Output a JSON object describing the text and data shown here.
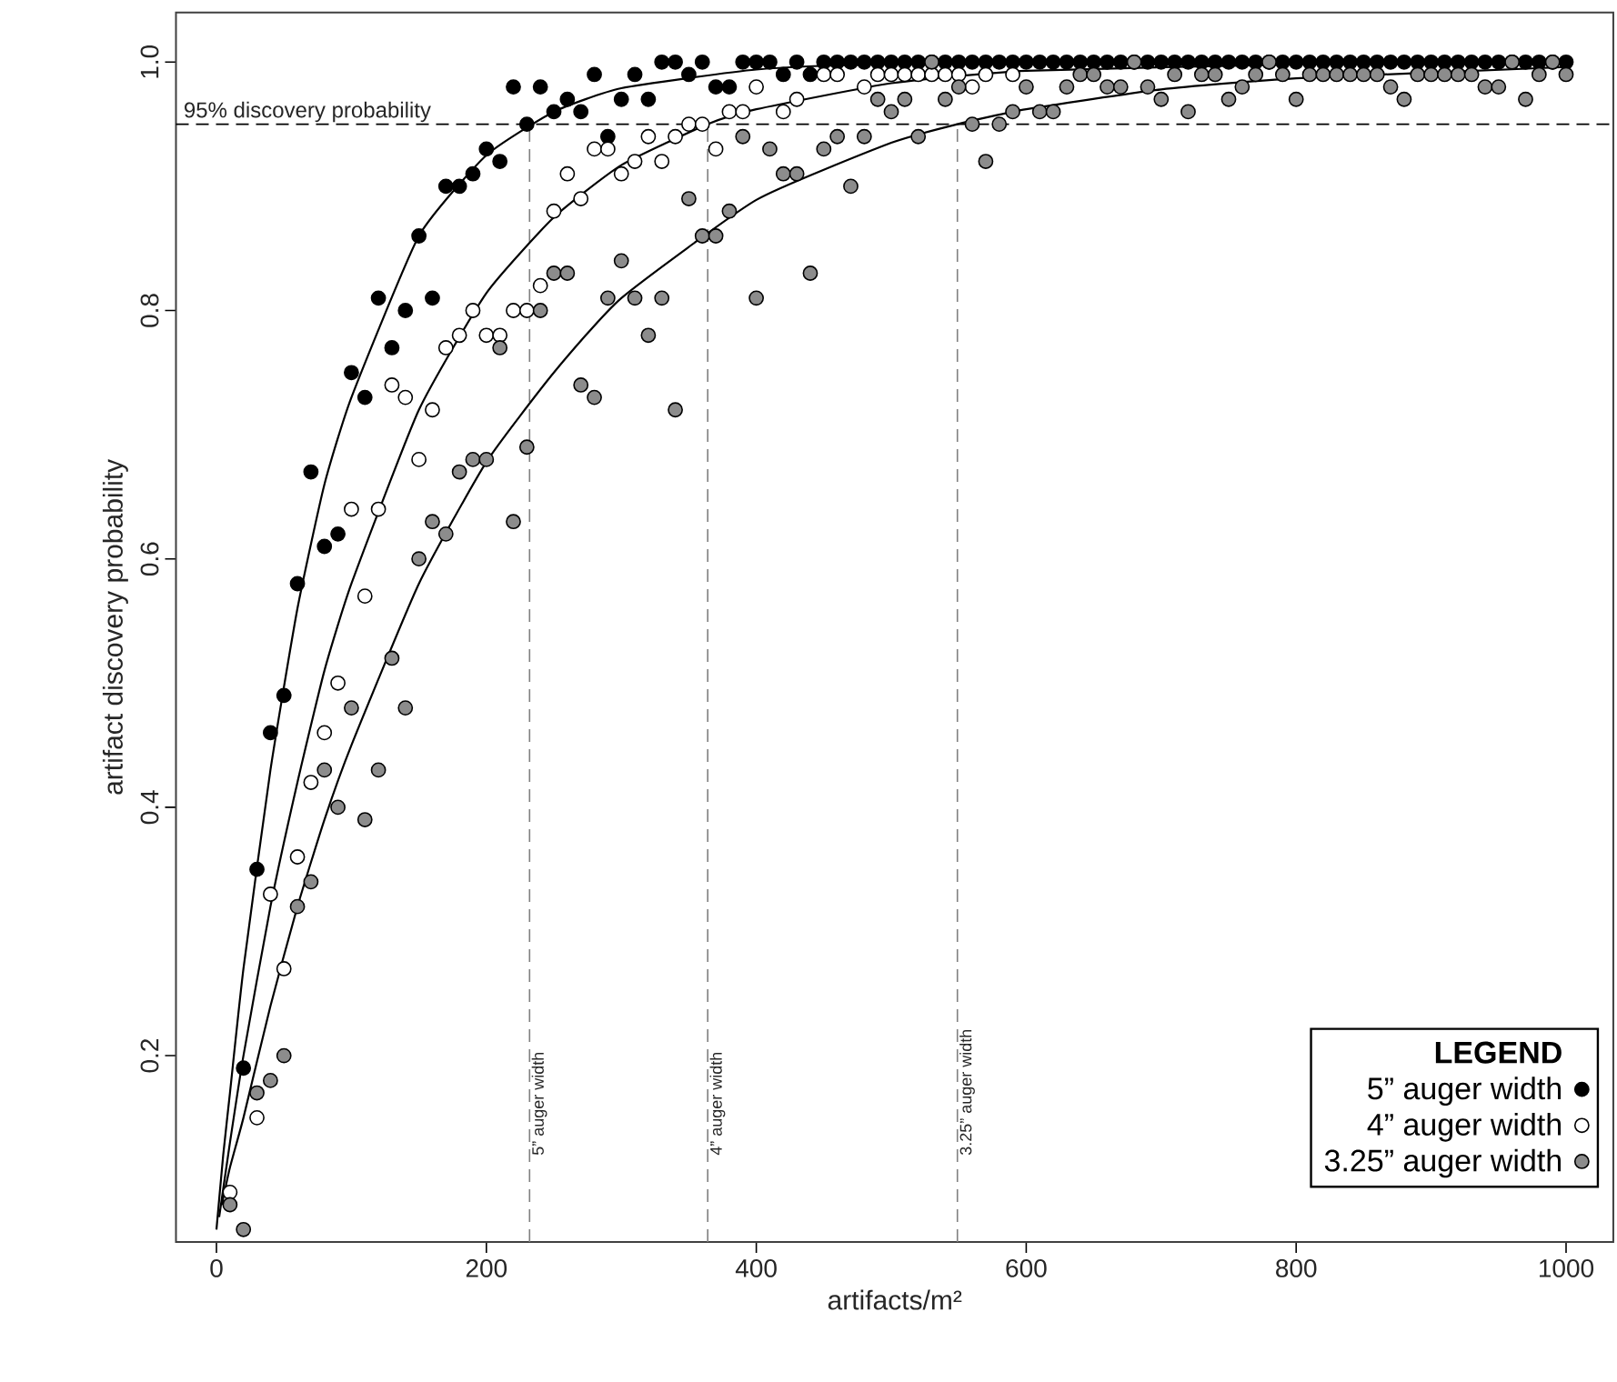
{
  "chart_data": {
    "type": "scatter",
    "xlabel": "artifacts/m²",
    "ylabel": "artifact discovery probability",
    "xlim": [
      -30,
      1035
    ],
    "ylim": [
      0.05,
      1.04
    ],
    "xticks": [
      0,
      200,
      400,
      600,
      800,
      1000
    ],
    "yticks": [
      0.2,
      0.4,
      0.6,
      0.8,
      {
        "value": 1,
        "label": "1.0"
      }
    ],
    "legend": "bottom right",
    "legend_title": "LEGEND",
    "series": [
      {
        "name": "5” auger width",
        "marker": "circle",
        "color": "#000000",
        "x": [
          20,
          30,
          40,
          50,
          60,
          70,
          80,
          90,
          100,
          110,
          120,
          130,
          140,
          150,
          160,
          170,
          180,
          190,
          200,
          210,
          220,
          230,
          240,
          250,
          260,
          270,
          280,
          290,
          300,
          310,
          320,
          330,
          340,
          350,
          360,
          370,
          380,
          390,
          400,
          410,
          420,
          430,
          440,
          450,
          460,
          470,
          480,
          490,
          500,
          510,
          520,
          530,
          540,
          550,
          560,
          570,
          580,
          590,
          600,
          610,
          620,
          630,
          640,
          650,
          660,
          670,
          680,
          690,
          700,
          710,
          720,
          730,
          740,
          750,
          760,
          770,
          780,
          790,
          800,
          810,
          820,
          830,
          840,
          850,
          860,
          870,
          880,
          890,
          900,
          910,
          920,
          930,
          940,
          950,
          960,
          970,
          980,
          990,
          1000
        ],
        "values": [
          0.19,
          0.35,
          0.46,
          0.49,
          0.58,
          0.67,
          0.61,
          0.62,
          0.75,
          0.73,
          0.81,
          0.77,
          0.8,
          0.86,
          0.81,
          0.9,
          0.9,
          0.91,
          0.93,
          0.92,
          0.98,
          0.95,
          0.98,
          0.96,
          0.97,
          0.96,
          0.99,
          0.94,
          0.97,
          0.99,
          0.97,
          1,
          1,
          0.99,
          1,
          0.98,
          0.98,
          1,
          1,
          1,
          0.99,
          1,
          0.99,
          1,
          1,
          1,
          1,
          1,
          1,
          1,
          1,
          1,
          1,
          1,
          1,
          1,
          1,
          1,
          1,
          1,
          1,
          1,
          1,
          1,
          1,
          1,
          1,
          1,
          1,
          1,
          1,
          1,
          1,
          1,
          1,
          1,
          1,
          1,
          1,
          1,
          1,
          1,
          1,
          1,
          1,
          1,
          1,
          1,
          1,
          1,
          1,
          1,
          1,
          1,
          1,
          1,
          1,
          1,
          1
        ]
      },
      {
        "name": "4” auger width",
        "marker": "circle",
        "color": "#ffffff",
        "x": [
          10,
          30,
          40,
          50,
          60,
          70,
          80,
          90,
          100,
          110,
          120,
          130,
          140,
          150,
          160,
          170,
          180,
          190,
          200,
          210,
          220,
          230,
          240,
          250,
          260,
          270,
          280,
          290,
          300,
          310,
          320,
          330,
          340,
          350,
          360,
          370,
          380,
          390,
          400,
          420,
          430,
          450,
          460,
          480,
          490,
          500,
          510,
          520,
          530,
          540,
          550,
          560,
          570,
          590
        ],
        "values": [
          0.09,
          0.15,
          0.33,
          0.27,
          0.36,
          0.42,
          0.46,
          0.5,
          0.64,
          0.57,
          0.64,
          0.74,
          0.73,
          0.68,
          0.72,
          0.77,
          0.78,
          0.8,
          0.78,
          0.78,
          0.8,
          0.8,
          0.82,
          0.88,
          0.91,
          0.89,
          0.93,
          0.93,
          0.91,
          0.92,
          0.94,
          0.92,
          0.94,
          0.95,
          0.95,
          0.93,
          0.96,
          0.96,
          0.98,
          0.96,
          0.97,
          0.99,
          0.99,
          0.98,
          0.99,
          0.99,
          0.99,
          0.99,
          0.99,
          0.99,
          0.99,
          0.98,
          0.99,
          0.99
        ]
      },
      {
        "name": "3.25” auger width",
        "marker": "circle",
        "color": "#8c8c8c",
        "x": [
          10,
          20,
          30,
          40,
          50,
          60,
          70,
          80,
          90,
          100,
          110,
          120,
          130,
          140,
          150,
          160,
          170,
          180,
          190,
          200,
          210,
          220,
          230,
          240,
          250,
          260,
          270,
          280,
          290,
          300,
          310,
          320,
          330,
          340,
          350,
          360,
          370,
          380,
          390,
          400,
          410,
          420,
          430,
          440,
          450,
          460,
          470,
          480,
          490,
          500,
          510,
          520,
          530,
          540,
          550,
          560,
          570,
          580,
          590,
          600,
          610,
          620,
          630,
          640,
          650,
          660,
          670,
          680,
          690,
          700,
          710,
          720,
          730,
          740,
          750,
          760,
          770,
          780,
          790,
          800,
          810,
          820,
          830,
          840,
          850,
          860,
          870,
          880,
          890,
          900,
          910,
          920,
          930,
          940,
          950,
          960,
          970,
          980,
          990,
          1000
        ],
        "values": [
          0.08,
          0.06,
          0.17,
          0.18,
          0.2,
          0.32,
          0.34,
          0.43,
          0.4,
          0.48,
          0.39,
          0.43,
          0.52,
          0.48,
          0.6,
          0.63,
          0.62,
          0.67,
          0.68,
          0.68,
          0.77,
          0.63,
          0.69,
          0.8,
          0.83,
          0.83,
          0.74,
          0.73,
          0.81,
          0.84,
          0.81,
          0.78,
          0.81,
          0.72,
          0.89,
          0.86,
          0.86,
          0.88,
          0.94,
          0.81,
          0.93,
          0.91,
          0.91,
          0.83,
          0.93,
          0.94,
          0.9,
          0.94,
          0.97,
          0.96,
          0.97,
          0.94,
          1,
          0.97,
          0.98,
          0.95,
          0.92,
          0.95,
          0.96,
          0.98,
          0.96,
          0.96,
          0.98,
          0.99,
          0.99,
          0.98,
          0.98,
          1,
          0.98,
          0.97,
          0.99,
          0.96,
          0.99,
          0.99,
          0.97,
          0.98,
          0.99,
          1,
          0.99,
          0.97,
          0.99,
          0.99,
          0.99,
          0.99,
          0.99,
          0.99,
          0.98,
          0.97,
          0.99,
          0.99,
          0.99,
          0.99,
          0.99,
          0.98,
          0.98,
          1,
          0.97,
          0.99,
          1,
          0.99
        ]
      },
      {
        "type": "line",
        "marker": "none",
        "color": "#000000",
        "x": [
          0,
          5,
          10,
          20,
          40,
          60,
          80,
          100,
          150,
          200,
          250,
          300,
          400,
          500,
          1000
        ],
        "values": [
          0.06,
          0.12,
          0.17,
          0.27,
          0.43,
          0.56,
          0.66,
          0.73,
          0.86,
          0.925,
          0.96,
          0.979,
          0.994,
          0.998,
          1
        ]
      },
      {
        "type": "line",
        "marker": "none",
        "color": "#000000",
        "x": [
          2,
          10,
          20,
          40,
          60,
          80,
          100,
          150,
          200,
          250,
          300,
          364,
          400,
          500,
          600,
          800,
          1000
        ],
        "values": [
          0.07,
          0.13,
          0.2,
          0.32,
          0.42,
          0.51,
          0.58,
          0.72,
          0.814,
          0.875,
          0.917,
          0.95,
          0.962,
          0.983,
          0.993,
          0.998,
          0.999
        ]
      },
      {
        "type": "line",
        "marker": "none",
        "color": "#000000",
        "x": [
          4,
          10,
          20,
          40,
          60,
          80,
          100,
          150,
          200,
          250,
          300,
          400,
          500,
          549,
          600,
          700,
          800,
          1000
        ],
        "values": [
          0.08,
          0.11,
          0.15,
          0.24,
          0.32,
          0.39,
          0.45,
          0.58,
          0.678,
          0.75,
          0.81,
          0.889,
          0.935,
          0.95,
          0.962,
          0.978,
          0.987,
          0.996
        ]
      }
    ],
    "ref_lines": [
      {
        "axis": "y",
        "value": 0.95,
        "label": "95% discovery probability",
        "color": "#000000",
        "line_style": "dashed"
      },
      {
        "axis": "x",
        "value": 232,
        "label": "5” auger width",
        "color": "#808080",
        "line_style": "dashed"
      },
      {
        "axis": "x",
        "value": 364,
        "label": "4” auger width",
        "color": "#808080",
        "line_style": "dashed"
      },
      {
        "axis": "x",
        "value": 549,
        "label": "3.25” auger width",
        "color": "#808080",
        "line_style": "dashed"
      }
    ]
  }
}
